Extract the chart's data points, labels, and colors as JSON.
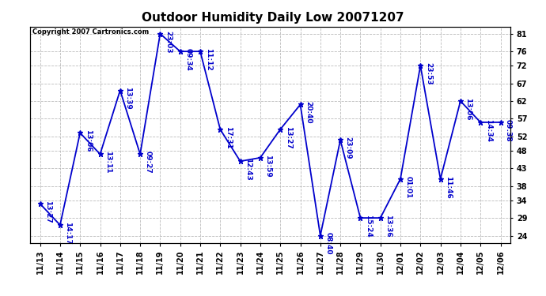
{
  "title": "Outdoor Humidity Daily Low 20071207",
  "copyright": "Copyright 2007 Cartronics.com",
  "x_labels": [
    "11/13",
    "11/14",
    "11/15",
    "11/16",
    "11/17",
    "11/18",
    "11/19",
    "11/20",
    "11/21",
    "11/22",
    "11/23",
    "11/24",
    "11/25",
    "11/26",
    "11/27",
    "11/28",
    "11/29",
    "11/30",
    "12/01",
    "12/02",
    "12/03",
    "12/04",
    "12/05",
    "12/06"
  ],
  "y_values": [
    33,
    27,
    53,
    47,
    65,
    47,
    81,
    76,
    76,
    54,
    45,
    46,
    54,
    61,
    24,
    51,
    29,
    29,
    40,
    72,
    40,
    62,
    56,
    56
  ],
  "point_labels": [
    "13:27",
    "14:17",
    "13:06",
    "13:11",
    "13:39",
    "09:27",
    "23:03",
    "09:34",
    "11:12",
    "17:31",
    "12:43",
    "13:59",
    "13:27",
    "20:40",
    "08:40",
    "23:09",
    "15:24",
    "13:36",
    "01:01",
    "23:53",
    "11:46",
    "13:06",
    "14:34",
    "09:38"
  ],
  "ylim": [
    22,
    83
  ],
  "yticks": [
    24,
    29,
    34,
    38,
    43,
    48,
    52,
    57,
    62,
    67,
    72,
    76,
    81
  ],
  "line_color": "#0000cc",
  "marker_color": "#0000cc",
  "bg_color": "#ffffff",
  "grid_color": "#bbbbbb",
  "title_fontsize": 11,
  "tick_fontsize": 7,
  "label_fontsize": 6.5
}
